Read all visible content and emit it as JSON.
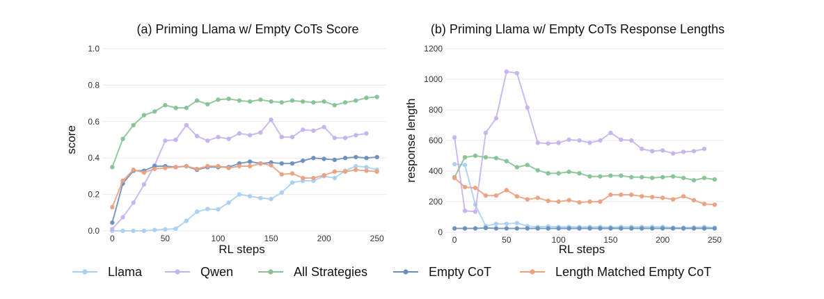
{
  "colors": {
    "Llama": "#a9d0f2",
    "Qwen": "#c6b3ee",
    "All Strategies": "#86c394",
    "Empty CoT": "#6a8fbd",
    "Length Matched Empty CoT": "#eba17f"
  },
  "legend": [
    "Llama",
    "Qwen",
    "All Strategies",
    "Empty CoT",
    "Length Matched Empty CoT"
  ],
  "chart_data": [
    {
      "type": "line",
      "title": "(a) Priming Llama w/ Empty CoTs Score",
      "xlabel": "RL steps",
      "ylabel": "score",
      "xlim": [
        0,
        250
      ],
      "ylim": [
        0,
        1.0
      ],
      "xticks": [
        0,
        50,
        100,
        150,
        200,
        250
      ],
      "yticks": [
        0.0,
        0.2,
        0.4,
        0.6,
        0.8,
        1.0
      ],
      "ytick_labels": [
        "0.0",
        "0.2",
        "0.4",
        "0.6",
        "0.8",
        "1.0"
      ],
      "grid": true,
      "series": [
        {
          "name": "Llama",
          "x": [
            0,
            10,
            20,
            30,
            40,
            50,
            60,
            70,
            80,
            90,
            100,
            110,
            120,
            130,
            140,
            150,
            160,
            170,
            180,
            190,
            200,
            210,
            220,
            230,
            240,
            250
          ],
          "y": [
            0.0,
            0.0,
            0.0,
            0.0,
            0.005,
            0.008,
            0.012,
            0.055,
            0.105,
            0.12,
            0.118,
            0.155,
            0.2,
            0.19,
            0.18,
            0.175,
            0.21,
            0.265,
            0.275,
            0.275,
            0.3,
            0.29,
            0.33,
            0.355,
            0.35,
            0.335
          ]
        },
        {
          "name": "Qwen",
          "x": [
            0,
            10,
            20,
            30,
            40,
            50,
            60,
            70,
            80,
            90,
            100,
            110,
            120,
            130,
            140,
            150,
            160,
            170,
            180,
            190,
            200,
            210,
            220,
            230,
            240
          ],
          "y": [
            0.01,
            0.075,
            0.155,
            0.255,
            0.36,
            0.495,
            0.5,
            0.58,
            0.52,
            0.495,
            0.515,
            0.505,
            0.535,
            0.525,
            0.54,
            0.61,
            0.515,
            0.515,
            0.555,
            0.55,
            0.57,
            0.51,
            0.51,
            0.525,
            0.535
          ]
        },
        {
          "name": "All Strategies",
          "x": [
            0,
            10,
            20,
            30,
            40,
            50,
            60,
            70,
            80,
            90,
            100,
            110,
            120,
            130,
            140,
            150,
            160,
            170,
            180,
            190,
            200,
            210,
            220,
            230,
            240,
            250
          ],
          "y": [
            0.35,
            0.505,
            0.58,
            0.635,
            0.655,
            0.69,
            0.675,
            0.675,
            0.715,
            0.695,
            0.72,
            0.725,
            0.715,
            0.71,
            0.72,
            0.71,
            0.705,
            0.715,
            0.71,
            0.705,
            0.71,
            0.69,
            0.705,
            0.715,
            0.73,
            0.735
          ]
        },
        {
          "name": "Empty CoT",
          "x": [
            0,
            10,
            20,
            30,
            40,
            50,
            60,
            70,
            80,
            90,
            100,
            110,
            120,
            130,
            140,
            150,
            160,
            170,
            180,
            190,
            200,
            210,
            220,
            230,
            240,
            250
          ],
          "y": [
            0.045,
            0.26,
            0.33,
            0.33,
            0.355,
            0.355,
            0.35,
            0.355,
            0.335,
            0.35,
            0.35,
            0.35,
            0.37,
            0.38,
            0.37,
            0.375,
            0.37,
            0.37,
            0.385,
            0.4,
            0.395,
            0.39,
            0.4,
            0.405,
            0.4,
            0.405
          ]
        },
        {
          "name": "Length Matched Empty CoT",
          "x": [
            0,
            10,
            20,
            30,
            40,
            50,
            60,
            70,
            80,
            90,
            100,
            110,
            120,
            130,
            140,
            150,
            160,
            170,
            180,
            190,
            200,
            210,
            220,
            230,
            240,
            250
          ],
          "y": [
            0.13,
            0.275,
            0.335,
            0.32,
            0.34,
            0.345,
            0.35,
            0.355,
            0.34,
            0.355,
            0.355,
            0.345,
            0.355,
            0.355,
            0.37,
            0.36,
            0.31,
            0.315,
            0.29,
            0.29,
            0.305,
            0.325,
            0.325,
            0.335,
            0.33,
            0.325
          ]
        }
      ]
    },
    {
      "type": "line",
      "title": "(b) Priming Llama w/ Empty CoTs Response Lengths",
      "xlabel": "RL steps",
      "ylabel": "response length",
      "xlim": [
        0,
        250
      ],
      "ylim": [
        0,
        1200
      ],
      "xticks": [
        0,
        50,
        100,
        150,
        200,
        250
      ],
      "yticks": [
        0,
        200,
        400,
        600,
        800,
        1000,
        1200
      ],
      "ytick_labels": [
        "0",
        "200",
        "400",
        "600",
        "800",
        "1000",
        "1200"
      ],
      "grid": true,
      "series": [
        {
          "name": "Llama",
          "x": [
            0,
            10,
            20,
            30,
            40,
            50,
            60,
            70,
            80,
            90,
            100,
            110,
            120,
            130,
            140,
            150,
            160,
            170,
            180,
            190,
            200,
            210,
            220,
            230,
            240,
            250
          ],
          "y": [
            445,
            440,
            180,
            40,
            55,
            55,
            60,
            40,
            35,
            38,
            35,
            35,
            35,
            35,
            35,
            33,
            35,
            35,
            35,
            35,
            35,
            30,
            30,
            32,
            35,
            30
          ]
        },
        {
          "name": "Qwen",
          "x": [
            0,
            10,
            20,
            30,
            40,
            50,
            60,
            70,
            80,
            90,
            100,
            110,
            120,
            130,
            140,
            150,
            160,
            170,
            180,
            190,
            200,
            210,
            220,
            230,
            240
          ],
          "y": [
            620,
            140,
            135,
            650,
            745,
            1050,
            1040,
            815,
            585,
            580,
            585,
            605,
            600,
            585,
            600,
            650,
            605,
            600,
            545,
            530,
            535,
            515,
            525,
            530,
            545
          ]
        },
        {
          "name": "All Strategies",
          "x": [
            0,
            10,
            20,
            30,
            40,
            50,
            60,
            70,
            80,
            90,
            100,
            110,
            120,
            130,
            140,
            150,
            160,
            170,
            180,
            190,
            200,
            210,
            220,
            230,
            240,
            250
          ],
          "y": [
            360,
            490,
            500,
            490,
            485,
            465,
            425,
            440,
            405,
            385,
            385,
            395,
            385,
            365,
            365,
            370,
            370,
            360,
            360,
            355,
            360,
            365,
            355,
            340,
            355,
            345
          ]
        },
        {
          "name": "Empty CoT",
          "x": [
            0,
            10,
            20,
            30,
            40,
            50,
            60,
            70,
            80,
            90,
            100,
            110,
            120,
            130,
            140,
            150,
            160,
            170,
            180,
            190,
            200,
            210,
            220,
            230,
            240,
            250
          ],
          "y": [
            25,
            25,
            25,
            28,
            25,
            25,
            25,
            25,
            25,
            25,
            25,
            25,
            25,
            25,
            25,
            25,
            25,
            25,
            25,
            25,
            25,
            25,
            25,
            25,
            25,
            25
          ]
        },
        {
          "name": "Length Matched Empty CoT",
          "x": [
            0,
            10,
            20,
            30,
            40,
            50,
            60,
            70,
            80,
            90,
            100,
            110,
            120,
            130,
            140,
            150,
            160,
            170,
            180,
            190,
            200,
            210,
            220,
            230,
            240,
            250
          ],
          "y": [
            355,
            295,
            290,
            240,
            240,
            275,
            235,
            215,
            225,
            205,
            200,
            210,
            195,
            200,
            200,
            245,
            245,
            245,
            235,
            230,
            225,
            215,
            235,
            210,
            185,
            180
          ]
        }
      ]
    }
  ]
}
